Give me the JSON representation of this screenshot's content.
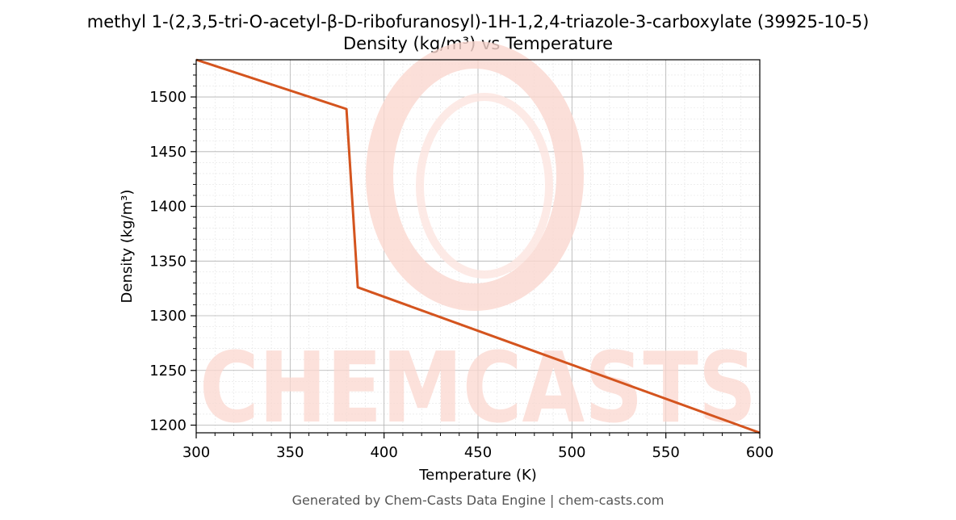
{
  "chart_data": {
    "type": "line",
    "title": "methyl 1-(2,3,5-tri-O-acetyl-β-D-ribofuranosyl)-1H-1,2,4-triazole-3-carboxylate (39925-10-5)",
    "subtitle": "Density (kg/m³) vs Temperature",
    "xlabel": "Temperature (K)",
    "ylabel": "Density (kg/m³)",
    "xlim": [
      300,
      600
    ],
    "ylim": [
      1193,
      1534
    ],
    "xticks": [
      300,
      350,
      400,
      450,
      500,
      550,
      600
    ],
    "yticks": [
      1200,
      1250,
      1300,
      1350,
      1400,
      1450,
      1500
    ],
    "grid": true,
    "series": [
      {
        "color": "#d4541e",
        "x": [
          300,
          380,
          386,
          600
        ],
        "y": [
          1534,
          1489,
          1326,
          1193
        ]
      }
    ]
  },
  "watermark": {
    "text": "CHEMCASTS",
    "color": "#fbd8d0"
  },
  "footer": "Generated by Chem-Casts Data Engine | chem-casts.com"
}
